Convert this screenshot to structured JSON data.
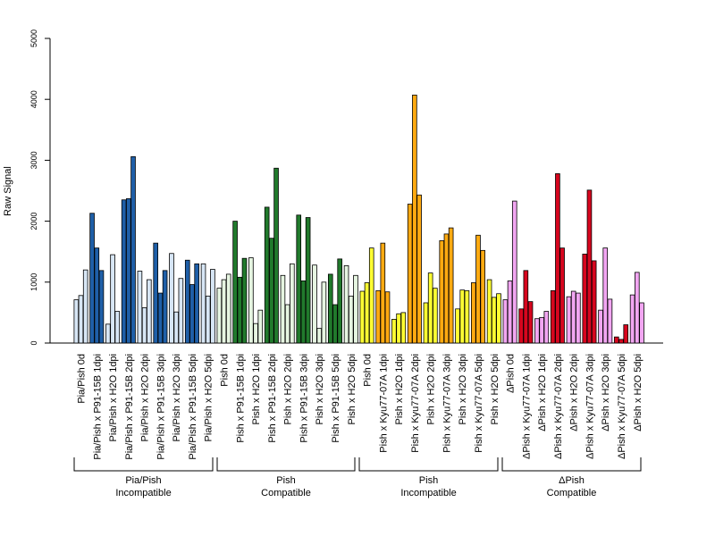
{
  "chart_data": {
    "type": "bar",
    "ylabel": "Raw Signal",
    "xlabel": "",
    "title": "",
    "ylim": [
      0,
      5000
    ],
    "yticks": [
      0,
      1000,
      2000,
      3000,
      4000,
      5000
    ],
    "grid": false,
    "legend": "none",
    "categories": [
      "Pia/Pish 0d",
      "Pia/Pish x P91-15B 1dpi",
      "Pia/Pish x H2O 1dpi",
      "Pia/Pish x P91-15B 2dpi",
      "Pia/Pish x H2O 2dpi",
      "Pia/Pish x P91-15B 3dpi",
      "Pia/Pish x H2O 3dpi",
      "Pia/Pish x P91-15B 5dpi",
      "Pia/Pish x H2O 5dpi",
      "Pish 0d",
      "Pish x P91-15B 1dpi",
      "Pish x H2O 1dpi",
      "Pish x P91-15B 2dpi",
      "Pish x H2O 2dpi",
      "Pish x P91-15B 3dpi",
      "Pish x H2O 3dpi",
      "Pish x P91-15B 5dpi",
      "Pish x H2O 5dpi",
      "Pish 0d",
      "Pish x Kyu77-07A 1dpi",
      "Pish x H2O 1dpi",
      "Pish x Kyu77-07A 2dpi",
      "Pish x H2O 2dpi",
      "Pish x Kyu77-07A 3dpi",
      "Pish x H2O 3dpi",
      "Pish x Kyu77-07A 5dpi",
      "Pish x H2O 5dpi",
      "ΔPish 0d",
      "ΔPish x Kyu77-07A 1dpi",
      "ΔPish x H2O 1dpi",
      "ΔPish x Kyu77-07A 2dpi",
      "ΔPish x H2O 2dpi",
      "ΔPish x Kyu77-07A 3dpi",
      "ΔPish x H2O 3dpi",
      "ΔPish x Kyu77-07A 5dpi",
      "ΔPish x H2O 5dpi"
    ],
    "values": [
      [
        710,
        780,
        1200
      ],
      [
        2130,
        1560,
        1190
      ],
      [
        310,
        1450,
        520
      ],
      [
        2350,
        2370,
        3060
      ],
      [
        1180,
        580,
        1040
      ],
      [
        1640,
        820,
        1190
      ],
      [
        1470,
        510,
        1060
      ],
      [
        1360,
        960,
        1300
      ],
      [
        1300,
        770,
        1210
      ],
      [
        900,
        1040,
        1130
      ],
      [
        2000,
        1080,
        1390
      ],
      [
        1400,
        320,
        540
      ],
      [
        2230,
        1720,
        2870
      ],
      [
        1110,
        630,
        1300
      ],
      [
        2100,
        1020,
        2060
      ],
      [
        1280,
        240,
        1000
      ],
      [
        1130,
        630,
        1380
      ],
      [
        1270,
        770,
        1110
      ],
      [
        850,
        990,
        1560
      ],
      [
        860,
        1640,
        840
      ],
      [
        390,
        480,
        500
      ],
      [
        2280,
        4070,
        2430
      ],
      [
        660,
        1150,
        900
      ],
      [
        1680,
        1790,
        1890
      ],
      [
        560,
        870,
        860
      ],
      [
        990,
        1770,
        1520
      ],
      [
        1040,
        750,
        810
      ],
      [
        710,
        1020,
        2330
      ],
      [
        560,
        1190,
        680
      ],
      [
        400,
        420,
        520
      ],
      [
        860,
        2780,
        1560
      ],
      [
        760,
        850,
        820
      ],
      [
        1460,
        2510,
        1350
      ],
      [
        540,
        1560,
        720
      ],
      [
        100,
        60,
        300
      ],
      [
        790,
        1160,
        660
      ]
    ],
    "group_labels": [
      [
        "Pia/Pish",
        "Incompatible"
      ],
      [
        "Pish",
        "Compatible"
      ],
      [
        "Pish",
        "Incompatible"
      ],
      [
        "ΔPish",
        "Compatible"
      ]
    ],
    "colors": {
      "pia_light": "#d7e6f5",
      "pia_dark": "#1f5fa8",
      "pish_c_light": "#e6f5e1",
      "pish_c_dark": "#217a2c",
      "pish_i_light": "#ffff33",
      "pish_i_dark": "#ffaa11",
      "dpish_light": "#f2a6f2",
      "dpish_dark": "#d7061e"
    }
  }
}
